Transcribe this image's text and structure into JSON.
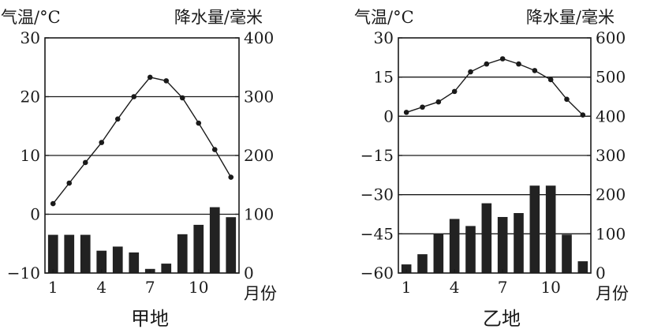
{
  "chart_data": [
    {
      "type": "bar",
      "title": "甲地",
      "ylabel_left": "气温/°C",
      "ylabel_right": "降水量/毫米",
      "xlabel": "月份",
      "x_ticks": [
        "1",
        "4",
        "7",
        "10"
      ],
      "y_left_ticks": [
        "30",
        "20",
        "10",
        "0",
        "−10"
      ],
      "y_right_ticks": [
        "400",
        "300",
        "200",
        "100",
        "0"
      ],
      "ylim_left": [
        -10,
        30
      ],
      "ylim_right": [
        0,
        400
      ],
      "grid": "horizontal",
      "categories": [
        "1",
        "2",
        "3",
        "4",
        "5",
        "6",
        "7",
        "8",
        "9",
        "10",
        "11",
        "12"
      ],
      "series": [
        {
          "type": "line",
          "axis": "left",
          "values": [
            1.8,
            5.3,
            8.8,
            12.2,
            16.2,
            20.0,
            23.3,
            22.7,
            19.8,
            15.5,
            11.0,
            6.3
          ]
        },
        {
          "type": "bar",
          "axis": "right",
          "values": [
            65,
            65,
            65,
            38,
            45,
            35,
            7,
            16,
            66,
            82,
            112,
            95
          ]
        }
      ]
    },
    {
      "type": "bar",
      "title": "乙地",
      "ylabel_left": "气温/°C",
      "ylabel_right": "降水量/毫米",
      "xlabel": "月份",
      "x_ticks": [
        "1",
        "4",
        "7",
        "10"
      ],
      "y_left_ticks": [
        "30",
        "15",
        "0",
        "−15",
        "−30",
        "−45",
        "−60"
      ],
      "y_right_ticks": [
        "600",
        "500",
        "400",
        "300",
        "200",
        "100",
        "0"
      ],
      "ylim_left": [
        -60,
        30
      ],
      "ylim_right": [
        0,
        600
      ],
      "grid": "horizontal",
      "categories": [
        "1",
        "2",
        "3",
        "4",
        "5",
        "6",
        "7",
        "8",
        "9",
        "10",
        "11",
        "12"
      ],
      "series": [
        {
          "type": "line",
          "axis": "left",
          "values": [
            1.5,
            3.5,
            5.5,
            9.5,
            17.0,
            20.0,
            22.0,
            20.0,
            17.5,
            14.0,
            6.5,
            0.5
          ]
        },
        {
          "type": "bar",
          "axis": "right",
          "values": [
            22,
            48,
            100,
            138,
            120,
            178,
            143,
            153,
            223,
            223,
            98,
            30
          ]
        }
      ]
    }
  ]
}
